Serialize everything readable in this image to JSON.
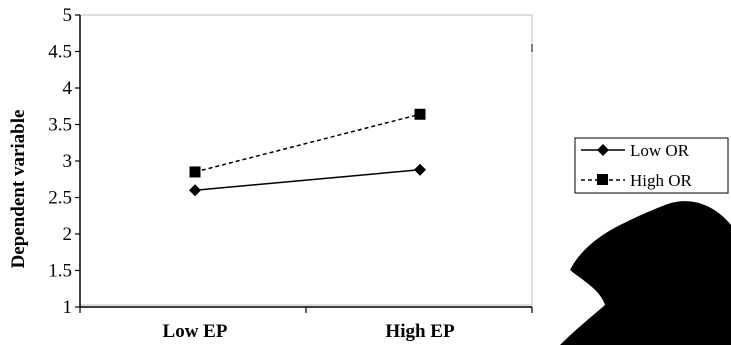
{
  "chart_data": {
    "type": "line",
    "title": "",
    "xlabel": "",
    "ylabel": "Dependent variable",
    "categories": [
      "Low EP",
      "High EP"
    ],
    "ylim": [
      1,
      5
    ],
    "yticks": [
      "1",
      "1.5",
      "2",
      "2.5",
      "3",
      "3.5",
      "4",
      "4.5",
      "5"
    ],
    "grid": false,
    "legend_position": "right",
    "series": [
      {
        "name": "Low OR",
        "values": [
          2.6,
          2.88
        ],
        "line_style": "solid",
        "marker": "diamond",
        "color": "#000000"
      },
      {
        "name": "High OR",
        "values": [
          2.85,
          3.64
        ],
        "line_style": "dashed",
        "marker": "square",
        "color": "#000000"
      }
    ]
  },
  "watermark": {
    "color": "#000000"
  }
}
